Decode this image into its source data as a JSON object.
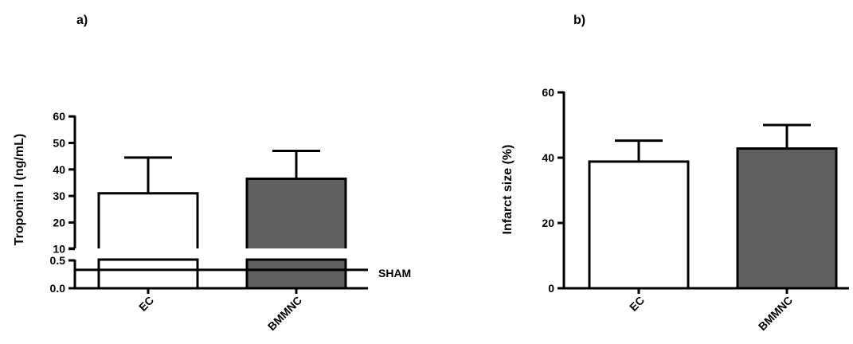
{
  "chart_data": [
    {
      "panel_label": "a)",
      "type": "bar",
      "categories": [
        "EC",
        "BMMNC"
      ],
      "values": [
        31,
        36.5
      ],
      "errors": [
        44.5,
        47
      ],
      "bar_colors": [
        "#ffffff",
        "#606060"
      ],
      "ylabel": "Troponin I (ng/mL)",
      "ylim": [
        0,
        60
      ],
      "axis_break": true,
      "y_ticks_lower": [
        "0.0",
        "0.5"
      ],
      "y_ticks_upper": [
        "10",
        "20",
        "30",
        "40",
        "50",
        "60"
      ],
      "reference_line": {
        "label": "SHAM",
        "value": 0.33
      }
    },
    {
      "panel_label": "b)",
      "type": "bar",
      "categories": [
        "EC",
        "BMMNC"
      ],
      "values": [
        38.8,
        42.8
      ],
      "errors": [
        45.2,
        50
      ],
      "bar_colors": [
        "#ffffff",
        "#606060"
      ],
      "ylabel": "Infarct size (%)",
      "ylim": [
        0,
        60
      ],
      "y_ticks": [
        "0",
        "20",
        "40",
        "60"
      ]
    }
  ]
}
